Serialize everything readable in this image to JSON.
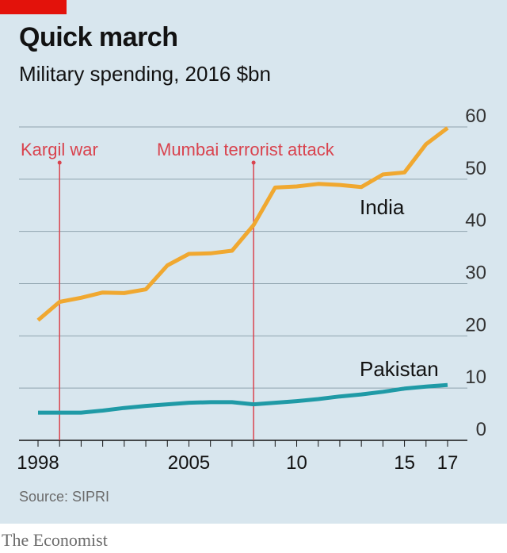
{
  "header": {
    "title": "Quick march",
    "subtitle": "Military spending, 2016 $bn"
  },
  "footer": {
    "source": "Source: SIPRI",
    "brand": "The Economist"
  },
  "colors": {
    "background": "#d8e6ee",
    "india": "#f0a830",
    "pakistan": "#1f9aa6",
    "annotation": "#d9434e",
    "brand_red": "#e3120b"
  },
  "chart_data": {
    "type": "line",
    "title": "Quick march",
    "subtitle": "Military spending, 2016 $bn",
    "xlim": [
      1998,
      2017
    ],
    "ylim": [
      0,
      60
    ],
    "yticks": [
      0,
      10,
      20,
      30,
      40,
      50,
      60
    ],
    "xtick_values": [
      1998,
      2005,
      2010,
      2015,
      2017
    ],
    "xtick_labels": [
      "1998",
      "2005",
      "10",
      "15",
      "17"
    ],
    "grid": true,
    "y_axis_side": "right",
    "x": [
      1998,
      1999,
      2000,
      2001,
      2002,
      2003,
      2004,
      2005,
      2006,
      2007,
      2008,
      2009,
      2010,
      2011,
      2012,
      2013,
      2014,
      2015,
      2016,
      2017
    ],
    "series": [
      {
        "name": "India",
        "values": [
          23.0,
          26.5,
          27.3,
          28.3,
          28.2,
          28.9,
          33.5,
          35.7,
          35.8,
          36.3,
          41.2,
          48.4,
          48.6,
          49.1,
          48.9,
          48.5,
          50.9,
          51.3,
          56.7,
          59.8
        ]
      },
      {
        "name": "Pakistan",
        "values": [
          5.3,
          5.3,
          5.3,
          5.7,
          6.2,
          6.6,
          6.9,
          7.2,
          7.3,
          7.3,
          6.9,
          7.2,
          7.5,
          7.9,
          8.4,
          8.8,
          9.3,
          9.9,
          10.3,
          10.6
        ]
      }
    ],
    "annotations": [
      {
        "label": "Kargil war",
        "x": 1999
      },
      {
        "label": "Mumbai terrorist attack",
        "x": 2008
      }
    ]
  }
}
